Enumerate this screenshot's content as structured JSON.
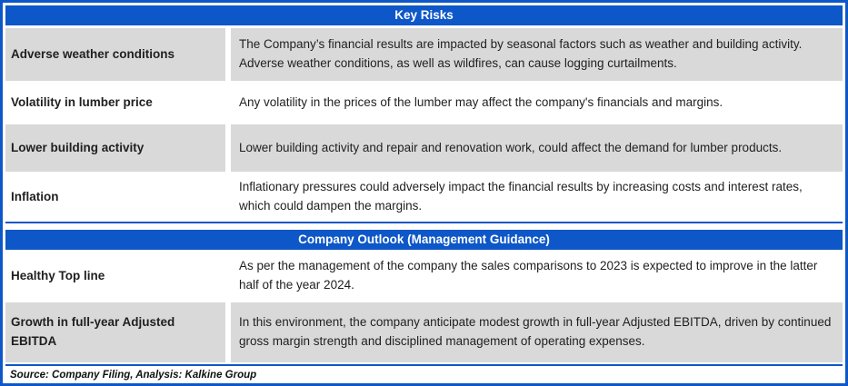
{
  "colors": {
    "header_blue": "#0d57c8",
    "row_gray": "#d9d9d9",
    "border_blue": "#0d57c8",
    "text": "#1f1f1f",
    "header_text": "#ffffff"
  },
  "sections": [
    {
      "title": "Key Risks",
      "rows": [
        {
          "label": "Adverse weather conditions",
          "description": "The Company’s financial results are impacted by seasonal factors such as weather and building activity. Adverse weather conditions, as well as wildfires, can cause logging curtailments.",
          "shaded": true
        },
        {
          "label": "Volatility in lumber price",
          "description": "Any volatility in the prices of the lumber may affect the company's financials and margins.",
          "shaded": false
        },
        {
          "label": "Lower building activity",
          "description": "Lower building activity and repair and renovation work, could affect the demand for lumber products.",
          "shaded": true
        },
        {
          "label": "Inflation",
          "description": "Inflationary pressures could adversely impact the financial results by increasing costs and interest rates, which could dampen the margins.",
          "shaded": false
        }
      ]
    },
    {
      "title": "Company Outlook (Management Guidance)",
      "rows": [
        {
          "label": "Healthy Top line",
          "description": "As per the management of the company the sales comparisons to 2023 is expected to improve in the latter half of the year 2024.",
          "shaded": false
        },
        {
          "label": "Growth in full-year Adjusted EBITDA",
          "description": "In this environment, the company anticipate modest growth in full-year Adjusted EBITDA, driven by continued gross margin strength and disciplined management of operating expenses.",
          "shaded": true
        }
      ]
    }
  ],
  "source_note": "Source: Company Filing, Analysis: Kalkine Group"
}
